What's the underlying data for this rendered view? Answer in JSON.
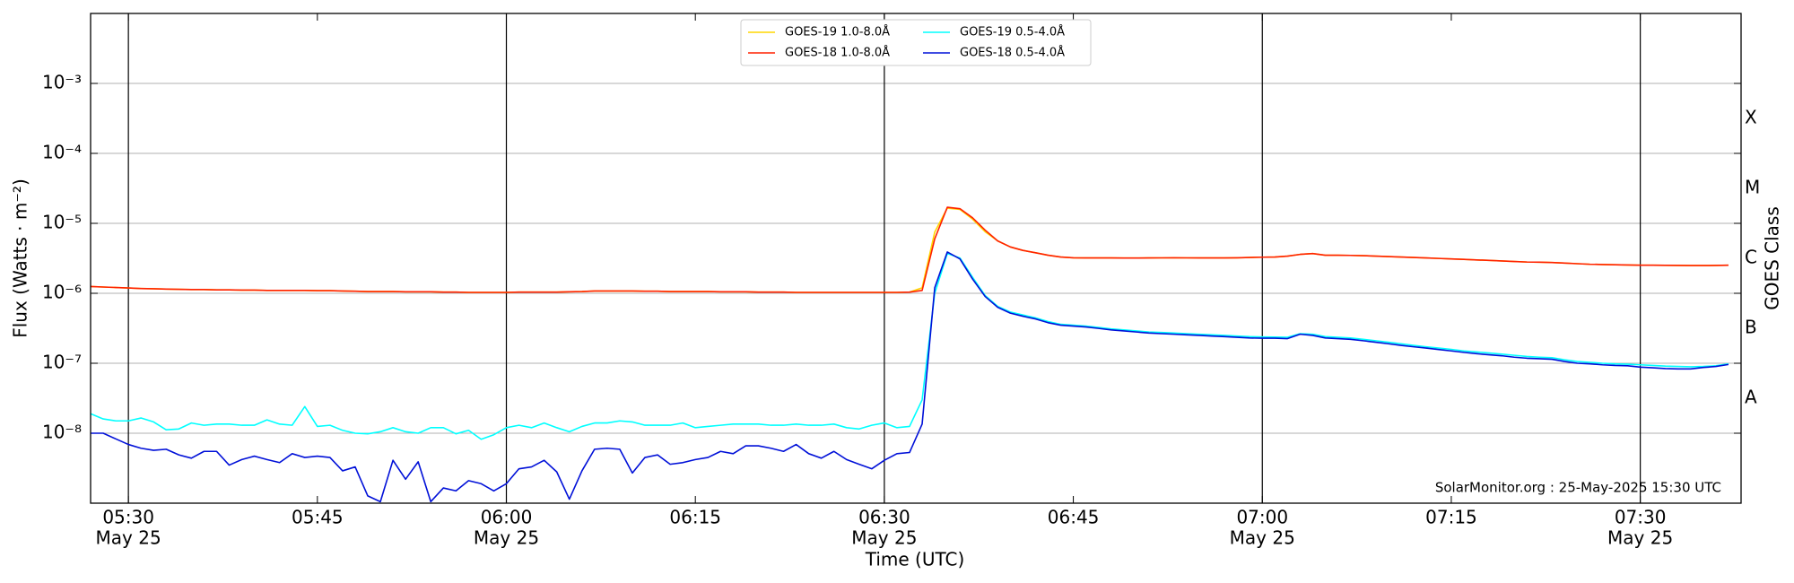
{
  "chart_data": {
    "type": "line",
    "xlabel": "Time (UTC)",
    "ylabel": "Flux (Watts · m⁻²)",
    "y2label": "GOES Class",
    "annotation": "SolarMonitor.org : 25-May-2025 15:30 UTC",
    "log_y": true,
    "grid": true,
    "legend": "upper center",
    "ylim": [
      1e-09,
      0.01
    ],
    "yticks": [
      {
        "value": 1e-08,
        "label": "10⁻⁸"
      },
      {
        "value": 1e-07,
        "label": "10⁻⁷"
      },
      {
        "value": 1e-06,
        "label": "10⁻⁶"
      },
      {
        "value": 1e-05,
        "label": "10⁻⁵"
      },
      {
        "value": 0.0001,
        "label": "10⁻⁴"
      },
      {
        "value": 0.001,
        "label": "10⁻³"
      }
    ],
    "classes": [
      {
        "label": "A",
        "value": 1e-08
      },
      {
        "label": "B",
        "value": 1e-07
      },
      {
        "label": "C",
        "value": 1e-06
      },
      {
        "label": "M",
        "value": 1e-05
      },
      {
        "label": "X",
        "value": 0.0001
      }
    ],
    "xlim": [
      "05:27",
      "07:38"
    ],
    "xticks": [
      {
        "value": "05:30",
        "label": "05:30",
        "date": "May 25"
      },
      "05:45",
      {
        "value": "06:00",
        "label": "06:00",
        "date": "May 25"
      },
      "06:15",
      {
        "value": "06:30",
        "label": "06:30",
        "date": "May 25"
      },
      "06:45",
      {
        "value": "07:00",
        "label": "07:00",
        "date": "May 25"
      },
      "07:15",
      {
        "value": "07:30",
        "label": "07:30",
        "date": "May 25"
      }
    ],
    "x": [
      "05:27",
      "05:28",
      "05:29",
      "05:30",
      "05:31",
      "05:32",
      "05:33",
      "05:34",
      "05:35",
      "05:36",
      "05:37",
      "05:38",
      "05:39",
      "05:40",
      "05:41",
      "05:42",
      "05:43",
      "05:44",
      "05:45",
      "05:46",
      "05:47",
      "05:48",
      "05:49",
      "05:50",
      "05:51",
      "05:52",
      "05:53",
      "05:54",
      "05:55",
      "05:56",
      "05:57",
      "05:58",
      "05:59",
      "06:00",
      "06:01",
      "06:02",
      "06:03",
      "06:04",
      "06:05",
      "06:06",
      "06:07",
      "06:08",
      "06:09",
      "06:10",
      "06:11",
      "06:12",
      "06:13",
      "06:14",
      "06:15",
      "06:16",
      "06:17",
      "06:18",
      "06:19",
      "06:20",
      "06:21",
      "06:22",
      "06:23",
      "06:24",
      "06:25",
      "06:26",
      "06:27",
      "06:28",
      "06:29",
      "06:30",
      "06:31",
      "06:32",
      "06:33",
      "06:34",
      "06:35",
      "06:36",
      "06:37",
      "06:38",
      "06:39",
      "06:40",
      "06:41",
      "06:42",
      "06:43",
      "06:44",
      "06:45",
      "06:46",
      "06:47",
      "06:48",
      "06:49",
      "06:50",
      "06:51",
      "06:52",
      "06:53",
      "06:54",
      "06:55",
      "06:56",
      "06:57",
      "06:58",
      "06:59",
      "07:00",
      "07:01",
      "07:02",
      "07:03",
      "07:04",
      "07:05",
      "07:06",
      "07:07",
      "07:08",
      "07:09",
      "07:10",
      "07:11",
      "07:12",
      "07:13",
      "07:14",
      "07:15",
      "07:16",
      "07:17",
      "07:18",
      "07:19",
      "07:20",
      "07:21",
      "07:22",
      "07:23",
      "07:24",
      "07:25",
      "07:26",
      "07:27",
      "07:28",
      "07:29",
      "07:30",
      "07:31",
      "07:32",
      "07:33",
      "07:34",
      "07:35",
      "07:36",
      "07:37"
    ],
    "series": [
      {
        "name": "GOES-19 1.0-8.0Å",
        "color": "#ffd700",
        "values": [
          1.25e-06,
          1.23e-06,
          1.21e-06,
          1.19e-06,
          1.17e-06,
          1.16e-06,
          1.15e-06,
          1.14e-06,
          1.13e-06,
          1.13e-06,
          1.12e-06,
          1.12e-06,
          1.11e-06,
          1.11e-06,
          1.1e-06,
          1.1e-06,
          1.1e-06,
          1.1e-06,
          1.09e-06,
          1.09e-06,
          1.08e-06,
          1.07e-06,
          1.06e-06,
          1.06e-06,
          1.06e-06,
          1.05e-06,
          1.05e-06,
          1.05e-06,
          1.04e-06,
          1.04e-06,
          1.03e-06,
          1.03e-06,
          1.03e-06,
          1.03e-06,
          1.04e-06,
          1.04e-06,
          1.04e-06,
          1.04e-06,
          1.05e-06,
          1.06e-06,
          1.08e-06,
          1.08e-06,
          1.08e-06,
          1.08e-06,
          1.07e-06,
          1.07e-06,
          1.06e-06,
          1.06e-06,
          1.06e-06,
          1.06e-06,
          1.05e-06,
          1.05e-06,
          1.05e-06,
          1.04e-06,
          1.04e-06,
          1.04e-06,
          1.03e-06,
          1.03e-06,
          1.03e-06,
          1.03e-06,
          1.03e-06,
          1.03e-06,
          1.03e-06,
          1.03e-06,
          1.03e-06,
          1.04e-06,
          1.2e-06,
          7.5e-06,
          1.65e-05,
          1.58e-05,
          1.15e-05,
          7.6e-06,
          5.6e-06,
          4.6e-06,
          4.1e-06,
          3.8e-06,
          3.5e-06,
          3.3e-06,
          3.22e-06,
          3.2e-06,
          3.2e-06,
          3.2e-06,
          3.19e-06,
          3.19e-06,
          3.2e-06,
          3.21e-06,
          3.22e-06,
          3.21e-06,
          3.2e-06,
          3.2e-06,
          3.2e-06,
          3.22e-06,
          3.25e-06,
          3.28e-06,
          3.3e-06,
          3.4e-06,
          3.6e-06,
          3.7e-06,
          3.5e-06,
          3.5e-06,
          3.48e-06,
          3.45e-06,
          3.4e-06,
          3.35e-06,
          3.3e-06,
          3.25e-06,
          3.2e-06,
          3.15e-06,
          3.1e-06,
          3.05e-06,
          3e-06,
          2.95e-06,
          2.9e-06,
          2.85e-06,
          2.8e-06,
          2.78e-06,
          2.75e-06,
          2.7e-06,
          2.65e-06,
          2.6e-06,
          2.58e-06,
          2.56e-06,
          2.54e-06,
          2.52e-06,
          2.52e-06,
          2.51e-06,
          2.5e-06,
          2.49e-06,
          2.49e-06,
          2.5e-06,
          2.52e-06
        ]
      },
      {
        "name": "GOES-18 1.0-8.0Å",
        "color": "#ff2000",
        "values": [
          1.25e-06,
          1.23e-06,
          1.21e-06,
          1.19e-06,
          1.17e-06,
          1.16e-06,
          1.15e-06,
          1.14e-06,
          1.13e-06,
          1.13e-06,
          1.12e-06,
          1.12e-06,
          1.11e-06,
          1.11e-06,
          1.1e-06,
          1.1e-06,
          1.1e-06,
          1.1e-06,
          1.09e-06,
          1.09e-06,
          1.08e-06,
          1.07e-06,
          1.06e-06,
          1.06e-06,
          1.06e-06,
          1.05e-06,
          1.05e-06,
          1.05e-06,
          1.04e-06,
          1.04e-06,
          1.03e-06,
          1.03e-06,
          1.03e-06,
          1.03e-06,
          1.04e-06,
          1.04e-06,
          1.04e-06,
          1.04e-06,
          1.05e-06,
          1.06e-06,
          1.08e-06,
          1.08e-06,
          1.08e-06,
          1.08e-06,
          1.07e-06,
          1.07e-06,
          1.06e-06,
          1.06e-06,
          1.06e-06,
          1.06e-06,
          1.05e-06,
          1.05e-06,
          1.05e-06,
          1.04e-06,
          1.04e-06,
          1.04e-06,
          1.03e-06,
          1.03e-06,
          1.03e-06,
          1.03e-06,
          1.03e-06,
          1.03e-06,
          1.03e-06,
          1.03e-06,
          1.03e-06,
          1.04e-06,
          1.1e-06,
          6e-06,
          1.7e-05,
          1.62e-05,
          1.2e-05,
          8e-06,
          5.6e-06,
          4.6e-06,
          4.1e-06,
          3.8e-06,
          3.5e-06,
          3.3e-06,
          3.22e-06,
          3.2e-06,
          3.2e-06,
          3.2e-06,
          3.19e-06,
          3.19e-06,
          3.2e-06,
          3.21e-06,
          3.22e-06,
          3.21e-06,
          3.2e-06,
          3.2e-06,
          3.2e-06,
          3.22e-06,
          3.25e-06,
          3.28e-06,
          3.3e-06,
          3.4e-06,
          3.6e-06,
          3.7e-06,
          3.5e-06,
          3.5e-06,
          3.48e-06,
          3.45e-06,
          3.4e-06,
          3.35e-06,
          3.3e-06,
          3.25e-06,
          3.2e-06,
          3.15e-06,
          3.1e-06,
          3.05e-06,
          3e-06,
          2.95e-06,
          2.9e-06,
          2.85e-06,
          2.8e-06,
          2.78e-06,
          2.75e-06,
          2.7e-06,
          2.65e-06,
          2.6e-06,
          2.58e-06,
          2.56e-06,
          2.54e-06,
          2.52e-06,
          2.52e-06,
          2.51e-06,
          2.5e-06,
          2.49e-06,
          2.49e-06,
          2.5e-06,
          2.52e-06
        ]
      },
      {
        "name": "GOES-19 0.5-4.0Å",
        "color": "#00ffff",
        "values": [
          1.9e-08,
          1.6e-08,
          1.5e-08,
          1.5e-08,
          1.65e-08,
          1.45e-08,
          1.12e-08,
          1.15e-08,
          1.4e-08,
          1.3e-08,
          1.35e-08,
          1.35e-08,
          1.3e-08,
          1.3e-08,
          1.55e-08,
          1.35e-08,
          1.3e-08,
          2.4e-08,
          1.25e-08,
          1.3e-08,
          1.1e-08,
          1e-08,
          9.8e-09,
          1.05e-08,
          1.2e-08,
          1.05e-08,
          1e-08,
          1.2e-08,
          1.2e-08,
          9.8e-09,
          1.1e-08,
          8.2e-09,
          9.5e-09,
          1.2e-08,
          1.3e-08,
          1.2e-08,
          1.4e-08,
          1.2e-08,
          1.05e-08,
          1.25e-08,
          1.4e-08,
          1.4e-08,
          1.5e-08,
          1.45e-08,
          1.3e-08,
          1.3e-08,
          1.3e-08,
          1.4e-08,
          1.2e-08,
          1.25e-08,
          1.3e-08,
          1.35e-08,
          1.35e-08,
          1.35e-08,
          1.3e-08,
          1.3e-08,
          1.35e-08,
          1.3e-08,
          1.3e-08,
          1.35e-08,
          1.2e-08,
          1.15e-08,
          1.3e-08,
          1.4e-08,
          1.2e-08,
          1.25e-08,
          3e-08,
          1e-06,
          3.7e-06,
          3.2e-06,
          1.7e-06,
          9.3e-07,
          6.5e-07,
          5.4e-07,
          4.9e-07,
          4.45e-07,
          3.95e-07,
          3.6e-07,
          3.5e-07,
          3.4e-07,
          3.25e-07,
          3.1e-07,
          3e-07,
          2.9e-07,
          2.8e-07,
          2.75e-07,
          2.7e-07,
          2.65e-07,
          2.6e-07,
          2.55e-07,
          2.5e-07,
          2.45e-07,
          2.4e-07,
          2.38e-07,
          2.37e-07,
          2.35e-07,
          2.65e-07,
          2.6e-07,
          2.4e-07,
          2.35e-07,
          2.3e-07,
          2.2e-07,
          2.1e-07,
          2e-07,
          1.9e-07,
          1.8e-07,
          1.72e-07,
          1.65e-07,
          1.58e-07,
          1.5e-07,
          1.45e-07,
          1.4e-07,
          1.35e-07,
          1.3e-07,
          1.25e-07,
          1.22e-07,
          1.2e-07,
          1.12e-07,
          1.06e-07,
          1.03e-07,
          1e-07,
          9.8e-08,
          9.7e-08,
          9.5e-08,
          9.3e-08,
          9.1e-08,
          9e-08,
          8.9e-08,
          9e-08,
          9.2e-08,
          9.8e-08
        ]
      },
      {
        "name": "GOES-18 0.5-4.0Å",
        "color": "#0010d8",
        "values": [
          1e-08,
          1e-08,
          8.3e-09,
          6.9e-09,
          6.1e-09,
          5.7e-09,
          5.9e-09,
          4.9e-09,
          4.4e-09,
          5.5e-09,
          5.5e-09,
          3.5e-09,
          4.2e-09,
          4.7e-09,
          4.2e-09,
          3.8e-09,
          5.1e-09,
          4.5e-09,
          4.7e-09,
          4.5e-09,
          2.9e-09,
          3.3e-09,
          1.27e-09,
          1.05e-09,
          4.1e-09,
          2.2e-09,
          3.9e-09,
          1.05e-09,
          1.65e-09,
          1.5e-09,
          2.1e-09,
          1.9e-09,
          1.5e-09,
          1.9e-09,
          3.1e-09,
          3.3e-09,
          4.1e-09,
          2.8e-09,
          1.14e-09,
          2.9e-09,
          5.9e-09,
          6.1e-09,
          5.9e-09,
          2.7e-09,
          4.5e-09,
          4.9e-09,
          3.6e-09,
          3.8e-09,
          4.2e-09,
          4.5e-09,
          5.5e-09,
          5.1e-09,
          6.6e-09,
          6.6e-09,
          6.1e-09,
          5.5e-09,
          6.9e-09,
          5.1e-09,
          4.4e-09,
          5.5e-09,
          4.2e-09,
          3.6e-09,
          3.1e-09,
          4.1e-09,
          5.1e-09,
          5.3e-09,
          1.35e-08,
          1.2e-06,
          3.9e-06,
          3.1e-06,
          1.6e-06,
          9e-07,
          6.3e-07,
          5.2e-07,
          4.7e-07,
          4.3e-07,
          3.8e-07,
          3.5e-07,
          3.4e-07,
          3.3e-07,
          3.15e-07,
          3e-07,
          2.9e-07,
          2.8e-07,
          2.7e-07,
          2.65e-07,
          2.6e-07,
          2.55e-07,
          2.5e-07,
          2.45e-07,
          2.4e-07,
          2.35e-07,
          2.3e-07,
          2.28e-07,
          2.28e-07,
          2.25e-07,
          2.6e-07,
          2.5e-07,
          2.3e-07,
          2.25e-07,
          2.2e-07,
          2.1e-07,
          2e-07,
          1.9e-07,
          1.8e-07,
          1.72e-07,
          1.65e-07,
          1.57e-07,
          1.5e-07,
          1.43e-07,
          1.37e-07,
          1.32e-07,
          1.28e-07,
          1.22e-07,
          1.18e-07,
          1.16e-07,
          1.14e-07,
          1.06e-07,
          1e-07,
          9.8e-08,
          9.5e-08,
          9.3e-08,
          9.2e-08,
          8.8e-08,
          8.6e-08,
          8.4e-08,
          8.3e-08,
          8.3e-08,
          8.7e-08,
          9e-08,
          9.6e-08
        ]
      }
    ]
  }
}
